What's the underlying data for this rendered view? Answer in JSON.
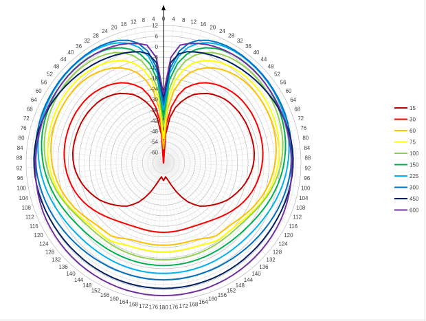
{
  "chart_data": {
    "type": "radar",
    "title": "",
    "angular_ticks": [
      "0",
      "4",
      "8",
      "12",
      "16",
      "20",
      "24",
      "28",
      "32",
      "36",
      "40",
      "44",
      "48",
      "52",
      "56",
      "60",
      "64",
      "68",
      "72",
      "76",
      "80",
      "84",
      "88",
      "92",
      "96",
      "100",
      "104",
      "108",
      "112",
      "116",
      "120",
      "124",
      "128",
      "132",
      "136",
      "140",
      "144",
      "148",
      "152",
      "156",
      "160",
      "164",
      "168",
      "172",
      "176",
      "180",
      "176",
      "172",
      "168",
      "164",
      "160",
      "156",
      "152",
      "148",
      "144",
      "140",
      "136",
      "132",
      "128",
      "124",
      "120",
      "116",
      "112",
      "108",
      "104",
      "100",
      "96",
      "92",
      "88",
      "84",
      "80",
      "76",
      "72",
      "68",
      "64",
      "60",
      "56",
      "52",
      "48",
      "44",
      "40",
      "36",
      "32",
      "28",
      "24",
      "20",
      "16",
      "12",
      "8",
      "4"
    ],
    "radial_ticks": [
      "-60",
      "-54",
      "-48",
      "-42",
      "-36",
      "-30",
      "-24",
      "-18",
      "-12",
      "-6",
      "0",
      "6",
      "12"
    ],
    "rlim": [
      -66,
      12
    ],
    "grid": true,
    "legend_position": "right",
    "series": [
      {
        "name": "15",
        "color": "#c00000",
        "values": [
          -66,
          -50,
          -40,
          -34,
          -30,
          -26.5,
          -23.5,
          -21.5,
          -19.5,
          -18,
          -16.8,
          -15.8,
          -15.2,
          -14.8,
          -14.4,
          -14.2,
          -14,
          -14,
          -14,
          -14,
          -14,
          -14.2,
          -14.6,
          -15.2,
          -16,
          -17,
          -18.2,
          -19.5,
          -21,
          -22.5,
          -24,
          -26,
          -28,
          -30,
          -32,
          -34,
          -37,
          -40,
          -44,
          -48,
          -52,
          -55,
          -57,
          -58,
          -57,
          -56
        ]
      },
      {
        "name": "30",
        "color": "#ff0000",
        "values": [
          -66,
          -44,
          -34,
          -27,
          -22,
          -19,
          -16.5,
          -14.5,
          -13,
          -11.8,
          -10.8,
          -10,
          -9.4,
          -9,
          -8.8,
          -8.6,
          -8.6,
          -8.6,
          -8.7,
          -8.8,
          -9,
          -9.3,
          -9.7,
          -10.2,
          -10.8,
          -11.5,
          -12.3,
          -13.2,
          -14.3,
          -15.5,
          -16.8,
          -18.2,
          -19.6,
          -21,
          -22.3,
          -23.5,
          -24.5,
          -25.3,
          -25.9,
          -26.3,
          -26.5,
          -26.6,
          -26.6,
          -26.6,
          -26.6,
          -26.6
        ]
      },
      {
        "name": "60",
        "color": "#ffc000",
        "values": [
          -58,
          -36,
          -25,
          -18,
          -13,
          -9.5,
          -7,
          -5,
          -3.5,
          -2.4,
          -1.5,
          -0.9,
          -0.5,
          -0.3,
          -0.2,
          -0.2,
          -0.2,
          -0.3,
          -0.5,
          -0.8,
          -1.2,
          -1.7,
          -2.3,
          -3,
          -3.8,
          -4.7,
          -5.7,
          -6.8,
          -8,
          -9.2,
          -10.5,
          -11.8,
          -13,
          -14,
          -14.6,
          -14.9,
          -15,
          -16,
          -17.5,
          -18.5,
          -19,
          -19.2,
          -19.3,
          -19.3,
          -19.3,
          -19.3
        ]
      },
      {
        "name": "75",
        "color": "#ffff00",
        "values": [
          -52,
          -30,
          -19,
          -12,
          -7.5,
          -4.5,
          -2.5,
          -1,
          0,
          0.8,
          1.3,
          1.7,
          1.9,
          2,
          2,
          1.9,
          1.8,
          1.6,
          1.3,
          1,
          0.6,
          0.1,
          -0.5,
          -1.2,
          -2,
          -2.9,
          -3.9,
          -5,
          -6.2,
          -7.5,
          -8.8,
          -10,
          -11,
          -11.8,
          -12.2,
          -12.3,
          -12.4,
          -13,
          -14,
          -14.8,
          -15.2,
          -15.4,
          -15.5,
          -15.5,
          -15.5,
          -15.5
        ]
      },
      {
        "name": "100",
        "color": "#92d050",
        "values": [
          -45,
          -25,
          -14,
          -7,
          -2.5,
          0.5,
          2.5,
          3.8,
          4.6,
          5.1,
          5.4,
          5.5,
          5.5,
          5.4,
          5.2,
          5,
          4.7,
          4.3,
          3.8,
          3.3,
          2.7,
          2,
          1.2,
          0.3,
          -0.7,
          -1.8,
          -3,
          -4.3,
          -5.6,
          -6.9,
          -8.1,
          -9.1,
          -9.9,
          -10.4,
          -10.7,
          -10.9,
          -11,
          -11,
          -11,
          -11,
          -11,
          -11,
          -11,
          -11,
          -11,
          -11
        ]
      },
      {
        "name": "150",
        "color": "#00b050",
        "values": [
          -40,
          -19,
          -9,
          -3,
          1,
          3.5,
          5.2,
          6.3,
          7,
          7.4,
          7.5,
          7.5,
          7.4,
          7.2,
          7,
          6.7,
          6.3,
          5.9,
          5.4,
          4.9,
          4.3,
          3.6,
          2.8,
          2,
          1.1,
          0.2,
          -0.8,
          -1.8,
          -2.8,
          -3.8,
          -4.7,
          -5.5,
          -6.2,
          -6.7,
          -7.1,
          -7.4,
          -7.6,
          -7.7,
          -7.8,
          -7.8,
          -7.8,
          -7.8,
          -7.8,
          -7.8,
          -7.8,
          -7.8
        ]
      },
      {
        "name": "225",
        "color": "#00b0f0",
        "values": [
          -36,
          -15,
          -5,
          1,
          4.5,
          6.6,
          7.9,
          8.6,
          9,
          9.2,
          9.2,
          9.1,
          9,
          8.8,
          8.6,
          8.3,
          8,
          7.6,
          7.2,
          6.7,
          6.2,
          5.6,
          5,
          4.3,
          3.6,
          2.8,
          2,
          1.2,
          0.4,
          -0.4,
          -1.1,
          -1.7,
          -2.2,
          -2.6,
          -2.9,
          -3.1,
          -3.2,
          -3.3,
          -3.3,
          -3.3,
          -3.3,
          -3.3,
          -3.3,
          -3.3,
          -3.3,
          -3.3
        ]
      },
      {
        "name": "300",
        "color": "#0070c0",
        "values": [
          -33,
          -12,
          -2,
          3.5,
          6.4,
          8,
          8.9,
          9.4,
          9.6,
          9.6,
          9.5,
          9.4,
          9.3,
          9.2,
          9,
          8.8,
          8.6,
          8.4,
          8.1,
          7.8,
          7.5,
          7.2,
          6.8,
          6.4,
          6,
          5.5,
          5,
          4.5,
          4,
          3.5,
          3,
          2.5,
          2.1,
          1.7,
          1.4,
          1.1,
          0.9,
          0.7,
          0.6,
          0.5,
          0.4,
          0.4,
          0.4,
          0.4,
          0.4,
          0.4
        ]
      },
      {
        "name": "450",
        "color": "#002060",
        "values": [
          -29,
          -9,
          -3.5,
          -1.5,
          -0.5,
          0.3,
          1,
          1.6,
          2.2,
          2.7,
          3.2,
          3.7,
          4.2,
          4.7,
          5.2,
          5.7,
          6.2,
          6.6,
          7,
          7.3,
          7.5,
          7.6,
          7.6,
          7.5,
          7.3,
          7.1,
          6.8,
          6.5,
          6.2,
          5.9,
          5.7,
          5.5,
          5.4,
          5.3,
          5.2,
          5.2,
          5.2,
          5.2,
          5.2,
          5.2,
          5.2,
          5.2,
          5.2,
          5.2,
          5.2,
          5.2
        ]
      },
      {
        "name": "600",
        "color": "#7030a0",
        "values": [
          -27,
          -6,
          1.5,
          3.2,
          4.5,
          5.5,
          6.2,
          6.7,
          7,
          7.2,
          7.3,
          7.3,
          7.3,
          7.2,
          7.1,
          7,
          6.9,
          6.8,
          6.7,
          6.6,
          6.6,
          6.6,
          6.7,
          6.8,
          7,
          7.2,
          7.4,
          7.6,
          7.8,
          8,
          8.1,
          8.2,
          8.3,
          8.4,
          8.5,
          8.6,
          8.7,
          8.8,
          8.9,
          9,
          9.1,
          9.2,
          9.2,
          9.3,
          9.3,
          9.3
        ]
      }
    ]
  }
}
